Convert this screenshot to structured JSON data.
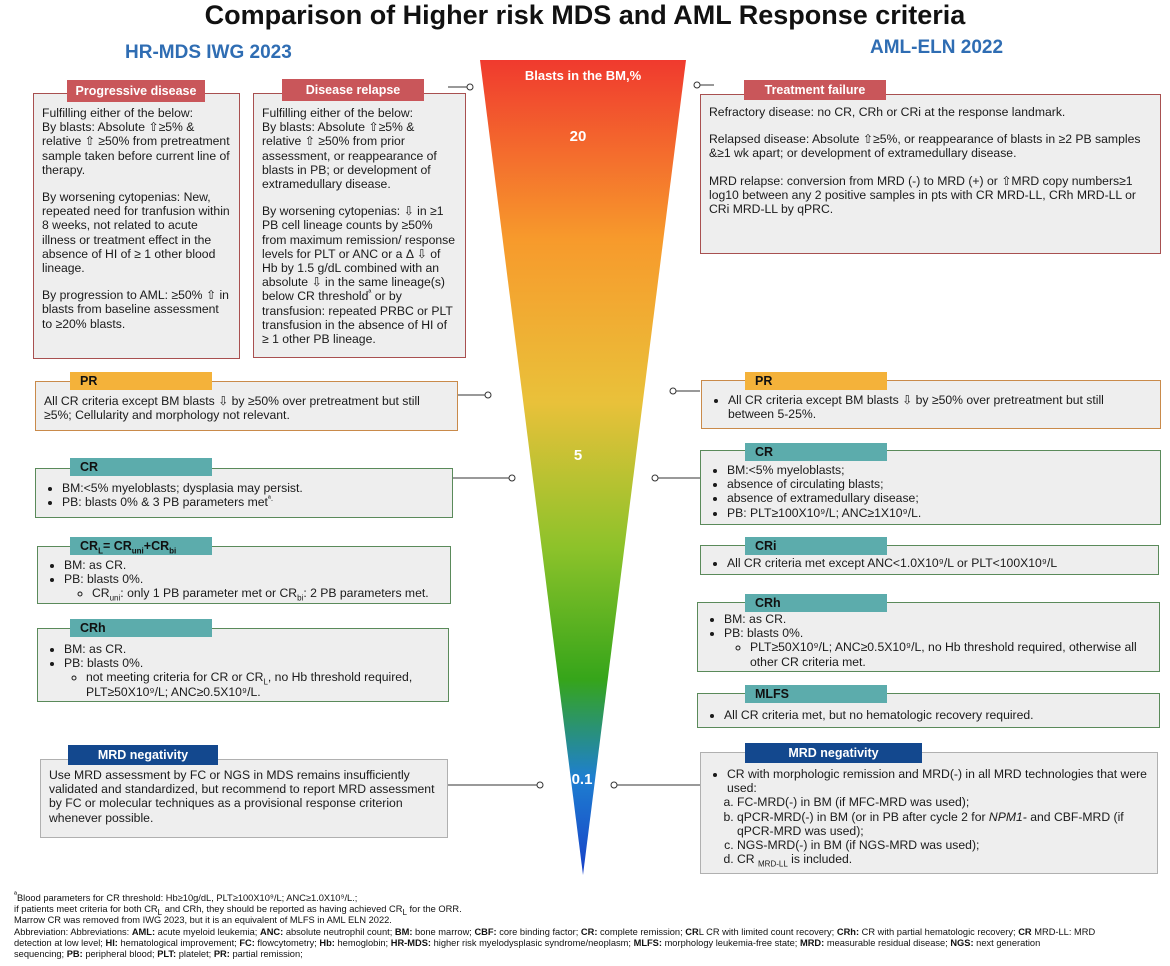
{
  "title": "Comparison of Higher risk MDS and AML Response criteria",
  "left_heading": "HR-MDS IWG 2023",
  "right_heading": "AML-ELN 2022",
  "triangle": {
    "label": "Blasts in the BM,%",
    "ticks": [
      "20",
      "5",
      "0.1"
    ],
    "colors": [
      "#f03a2e",
      "#f79a2c",
      "#e9c13a",
      "#8cc22a",
      "#36a51a",
      "#1840c8"
    ]
  },
  "left": {
    "progressive": {
      "tag": "Progressive disease",
      "p1": "Fulfilling either of the below:",
      "p1b": "By blasts: Absolute ⇧≥5% & relative ⇧ ≥50% from pretreatment sample taken before current line of therapy.",
      "p2": "By worsening cytopenias: New, repeated need for tranfusion within 8 weeks, not related to acute illness or treatment effect in the absence of HI of ≥ 1 other blood lineage.",
      "p3": "By progression to AML: ≥50% ⇧ in blasts from baseline assessment to ≥20% blasts."
    },
    "relapse": {
      "tag": "Disease relapse",
      "p1": "Fulfilling either of the below:",
      "p1b": "By blasts: Absolute ⇧≥5% & relative ⇧ ≥50%  from prior assessment, or reappearance of blasts in PB; or development of extramedullary disease.",
      "p2": "By worsening cytopenias: ⇩ in ≥1 PB cell lineage counts by ≥50% from maximum remission/ response levels for PLT or ANC or a Δ ⇩ of Hb by 1.5 g/dL combined with an absolute ⇩ in the same lineage(s) below CR threshold",
      "p2sup": "ª",
      "p2b": " or by transfusion: repeated PRBC or PLT transfusion in the absence of HI of ≥ 1 other PB lineage."
    },
    "pr": {
      "tag": "PR",
      "text": "All CR criteria except BM blasts ⇩ by ≥50% over pretreatment but still ≥5%; Cellularity and morphology not relevant."
    },
    "cr": {
      "tag": "CR",
      "items": [
        "BM:<5% myeloblasts; dysplasia may persist.",
        "PB: blasts 0% & 3 PB parameters met"
      ],
      "sup": "ª."
    },
    "crl": {
      "tag_a": "CR",
      "tag_sub1": "L",
      "tag_b": "= CR",
      "tag_sub2": "uni",
      "tag_c": "+CR",
      "tag_sub3": "bi",
      "items": [
        "BM: as CR.",
        "PB: blasts 0%."
      ],
      "sub_a": "CR",
      "sub_a_sub": "uni",
      "sub_b": ": only 1 PB parameter met or CR",
      "sub_b_sub": "bi",
      "sub_c": ": 2 PB parameters met."
    },
    "crh": {
      "tag": "CRh",
      "items": [
        "BM: as CR.",
        "PB: blasts 0%."
      ],
      "sub_a": "not meeting criteria for CR or CR",
      "sub_a_sub": "L",
      "sub_b": ", no Hb threshold required, PLT≥50X10⁹/L; ANC≥0.5X10⁹/L."
    },
    "mrd": {
      "tag": "MRD negativity",
      "text": "Use MRD assessment by FC or NGS in MDS remains insufficiently validated and standardized, but recommend to report MRD assessment by FC or molecular techniques as a provisional response criterion whenever possible."
    }
  },
  "right": {
    "failure": {
      "tag": "Treatment failure",
      "p1": "Refractory disease: no CR, CRh or CRi at the response landmark.",
      "p2": "Relapsed disease: Absolute ⇧≥5%, or reappearance of blasts in ≥2 PB samples &≥1 wk apart; or development of extramedullary disease.",
      "p3": "MRD relapse: conversion from MRD (-) to MRD (+) or ⇧MRD copy numbers≥1 log10 between any 2 positive samples in pts with CR MRD-LL, CRh MRD-LL or CRi MRD-LL by qPRC."
    },
    "pr": {
      "tag": "PR",
      "text": "All CR criteria except BM blasts ⇩ by ≥50% over pretreatment but still between 5-25%."
    },
    "cr": {
      "tag": "CR",
      "items": [
        "BM:<5% myeloblasts;",
        "absence of circulating blasts;",
        "absence of extramedullary disease;",
        "PB: PLT≥100X10⁹/L; ANC≥1X10⁹/L."
      ]
    },
    "cri": {
      "tag": "CRi",
      "text": "All CR criteria met except ANC<1.0X10⁹/L or PLT<100X10⁹/L"
    },
    "crh": {
      "tag": "CRh",
      "items": [
        "BM: as CR.",
        "PB: blasts 0%."
      ],
      "sub": "PLT≥50X10⁹/L; ANC≥0.5X10⁹/L, no Hb threshold required, otherwise all other CR criteria met."
    },
    "mlfs": {
      "tag": "MLFS",
      "text": "All CR criteria met, but no hematologic recovery required."
    },
    "mrd": {
      "tag": "MRD negativity",
      "lead": "CR with morphologic remission and MRD(-) in all MRD technologies that were used:",
      "a": "FC-MRD(-) in BM (if MFC-MRD was used);",
      "b_pre": "qPCR-MRD(-) in BM (or in PB after cycle 2 for ",
      "b_em": "NPM1-",
      "b_post": " and CBF-MRD (if qPCR-MRD was used);",
      "c": "NGS-MRD(-) in BM (if NGS-MRD was used);",
      "d_pre": "CR ",
      "d_sub": "MRD-LL",
      "d_post": " is included."
    }
  },
  "footer": {
    "l1_sup": "ª",
    "l1": "Blood parameters for CR threshold: Hb≥10g/dL, PLT≥100X10⁹/L; ANC≥1.0X10⁹/L.;",
    "l2a": "if patients meet criteria for both CR",
    "l2sub1": "L",
    "l2b": " and CRh, they should be reported as having achieved CR",
    "l2sub2": "L",
    "l2c": " for the ORR.",
    "l3": "Marrow CR was removed from IWG 2023, but it is an equivalent of MLFS in AML ELN 2022.",
    "abbr": [
      [
        "",
        "Abbreviation: Abbreviations: "
      ],
      [
        "AML:",
        " acute myeloid leukemia; "
      ],
      [
        "ANC:",
        " absolute neutrophil count; "
      ],
      [
        "BM:",
        " bone marrow; "
      ],
      [
        "CBF:",
        " core binding factor; "
      ],
      [
        "CR:",
        " complete remission; "
      ],
      [
        "CR",
        ""
      ],
      [
        "",
        "L"
      ],
      [
        "",
        " CR with limited count recovery; "
      ],
      [
        "CRh:",
        " CR with partial hematologic recovery; "
      ],
      [
        "CR ",
        ""
      ],
      [
        "",
        "MRD-LL:"
      ],
      [
        "",
        " MRD"
      ]
    ],
    "abbr_line2": [
      [
        "",
        "detection at low level; "
      ],
      [
        "HI:",
        " hematological improvement; "
      ],
      [
        "FC:",
        " flowcytometry; "
      ],
      [
        "Hb:",
        " hemoglobin; "
      ],
      [
        "HR-MDS:",
        " higher risk myelodysplasic syndrome/neoplasm; "
      ],
      [
        "MLFS:",
        " morphology leukemia-free state; "
      ],
      [
        "MRD:",
        " measurable residual disease; "
      ],
      [
        "NGS:",
        " next generation"
      ]
    ],
    "abbr_line3": [
      [
        "",
        "sequencing; "
      ],
      [
        "PB:",
        " peripheral blood; "
      ],
      [
        "PLT:",
        " platelet; "
      ],
      [
        "PR:",
        " partial remission;"
      ]
    ]
  }
}
